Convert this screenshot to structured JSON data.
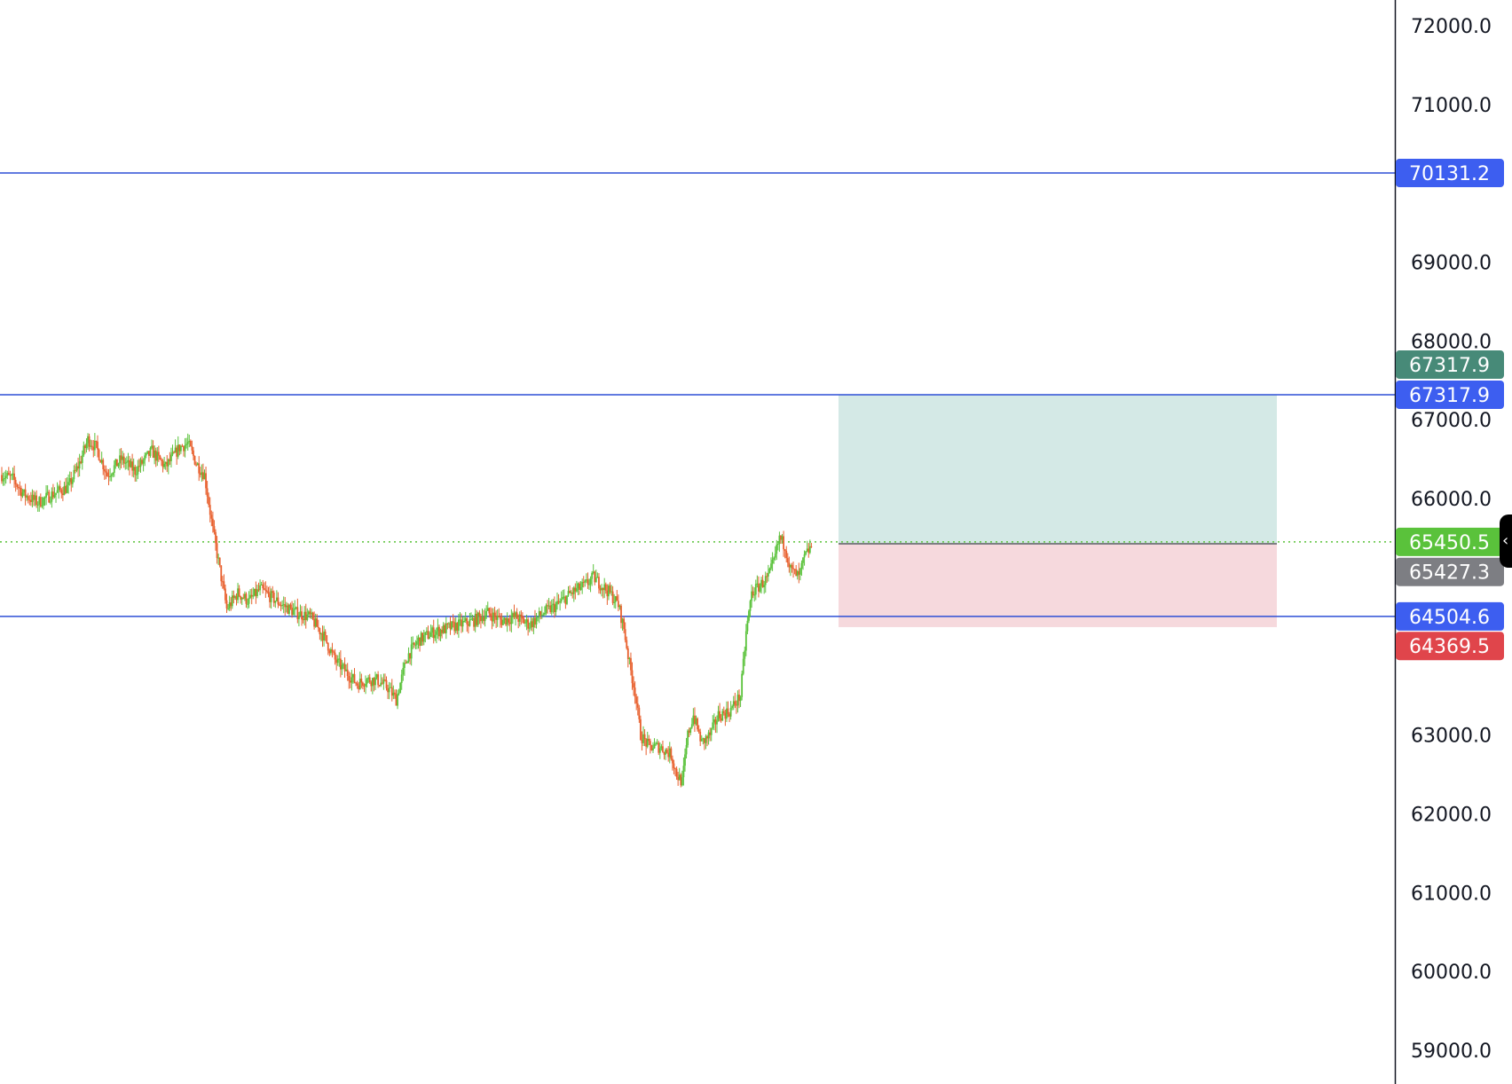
{
  "chart_data": {
    "type": "candlestick",
    "y_axis": {
      "position": "right",
      "range": [
        58750,
        73300
      ],
      "ticks": [
        "72000.0",
        "71000.0",
        "69000.0",
        "68000.0",
        "67000.0",
        "66000.0",
        "63000.0",
        "62000.0",
        "61000.0",
        "60000.0",
        "59000.0"
      ]
    },
    "colors": {
      "up": "#5ac23b",
      "down": "#e8602e",
      "hline": "#2d4fd6",
      "last_price_line": "#5ac23b",
      "target_zone": "#d4e9e6",
      "stop_zone": "#f6d9dd"
    },
    "horizontal_lines": [
      70131.2,
      67317.9,
      64504.6
    ],
    "last_price": 65450.5,
    "position_tool": {
      "entry": 65427.3,
      "target": 67317.9,
      "stop": 64369.5,
      "x_range": [
        1084,
        1266
      ]
    },
    "price_tags": [
      {
        "label": "70131.2",
        "value": 70131.2,
        "color": "#3d5ef0"
      },
      {
        "label": "67317.9",
        "value": 67700,
        "color": "#478a78"
      },
      {
        "label": "67317.9",
        "value": 67317.9,
        "color": "#3d5ef0"
      },
      {
        "label": "65450.5",
        "value": 65450.5,
        "color": "#5ac23b"
      },
      {
        "label": "65427.3",
        "value": 65070,
        "color": "#7d7e83"
      },
      {
        "label": "64504.6",
        "value": 64504.6,
        "color": "#3d5ef0"
      },
      {
        "label": "64369.5",
        "value": 64130,
        "color": "#e0454b"
      }
    ],
    "candles": {
      "x_start": 0,
      "x_step": 1,
      "anchors": [
        [
          0,
          66300
        ],
        [
          8,
          66250
        ],
        [
          16,
          66050
        ],
        [
          26,
          65950
        ],
        [
          36,
          66050
        ],
        [
          48,
          66150
        ],
        [
          56,
          66450
        ],
        [
          62,
          66750
        ],
        [
          68,
          66650
        ],
        [
          76,
          66300
        ],
        [
          86,
          66500
        ],
        [
          96,
          66350
        ],
        [
          108,
          66600
        ],
        [
          118,
          66400
        ],
        [
          128,
          66650
        ],
        [
          134,
          66700
        ],
        [
          140,
          66450
        ],
        [
          146,
          66300
        ],
        [
          152,
          65600
        ],
        [
          157,
          65100
        ],
        [
          162,
          64600
        ],
        [
          170,
          64800
        ],
        [
          178,
          64700
        ],
        [
          186,
          64850
        ],
        [
          194,
          64750
        ],
        [
          202,
          64650
        ],
        [
          212,
          64550
        ],
        [
          222,
          64500
        ],
        [
          232,
          64250
        ],
        [
          240,
          63950
        ],
        [
          248,
          63800
        ],
        [
          256,
          63650
        ],
        [
          262,
          63700
        ],
        [
          270,
          63700
        ],
        [
          278,
          63600
        ],
        [
          284,
          63450
        ],
        [
          292,
          64000
        ],
        [
          300,
          64200
        ],
        [
          310,
          64300
        ],
        [
          320,
          64350
        ],
        [
          330,
          64400
        ],
        [
          340,
          64450
        ],
        [
          350,
          64550
        ],
        [
          360,
          64450
        ],
        [
          370,
          64500
        ],
        [
          380,
          64400
        ],
        [
          390,
          64550
        ],
        [
          400,
          64650
        ],
        [
          410,
          64800
        ],
        [
          420,
          64900
        ],
        [
          426,
          65000
        ],
        [
          432,
          64900
        ],
        [
          438,
          64800
        ],
        [
          444,
          64650
        ],
        [
          448,
          64350
        ],
        [
          452,
          63900
        ],
        [
          456,
          63550
        ],
        [
          460,
          63000
        ],
        [
          466,
          62850
        ],
        [
          474,
          62850
        ],
        [
          482,
          62750
        ],
        [
          486,
          62500
        ],
        [
          490,
          62400
        ],
        [
          494,
          63000
        ],
        [
          498,
          63250
        ],
        [
          504,
          62900
        ],
        [
          510,
          63000
        ],
        [
          516,
          63250
        ],
        [
          524,
          63300
        ],
        [
          532,
          63500
        ],
        [
          536,
          64300
        ],
        [
          540,
          64800
        ],
        [
          546,
          64900
        ],
        [
          552,
          65000
        ],
        [
          556,
          65200
        ],
        [
          560,
          65500
        ],
        [
          564,
          65400
        ],
        [
          568,
          65100
        ],
        [
          574,
          65000
        ],
        [
          578,
          65250
        ],
        [
          583,
          65400
        ]
      ]
    }
  },
  "ui": {
    "collapse_glyph": "‹"
  }
}
